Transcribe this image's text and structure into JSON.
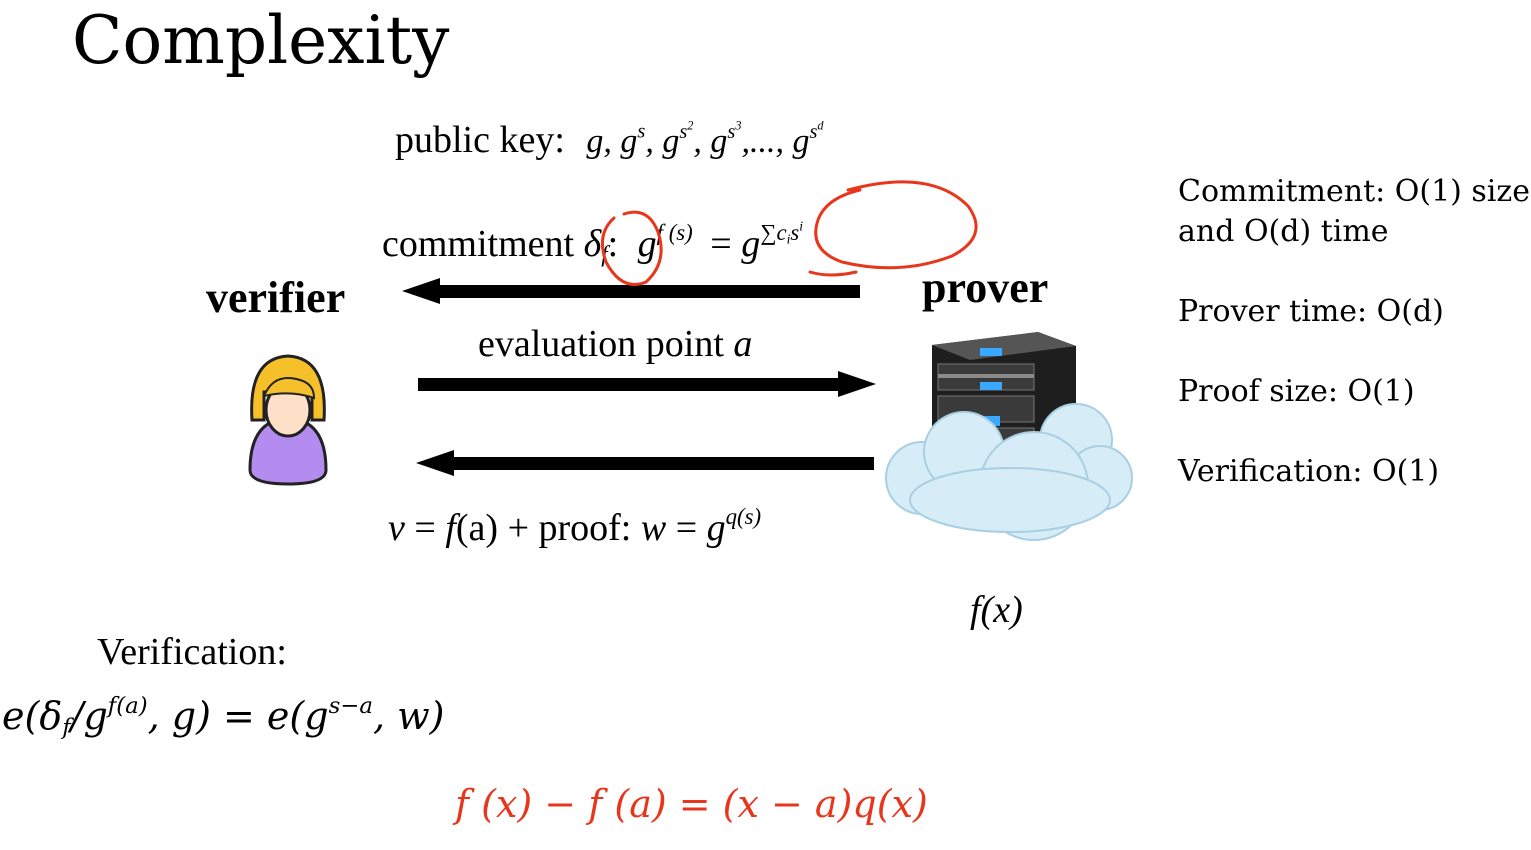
{
  "title": "Complexity",
  "public_key": {
    "label": "public key:",
    "expr": "g, gs, gs2, gs3, ..., gsd",
    "terms": [
      "g",
      ", g",
      ", g",
      ", g",
      ",..., g"
    ],
    "exponents": [
      "s",
      "s",
      "s",
      "s"
    ],
    "sub_exponents": [
      "",
      "2",
      "3",
      "d"
    ]
  },
  "commitment": {
    "label": "commitment",
    "symbol": "δ",
    "symbol_sub": "f",
    "colon": ":",
    "lhs_base": "g",
    "lhs_exp": "f (s)",
    "equals": "=",
    "rhs_base": "g",
    "rhs_exp": "∑c",
    "rhs_exp_sub": "i",
    "rhs_exp_tail": "s",
    "rhs_exp_tail_sup": "i"
  },
  "verifier_label": "verifier",
  "prover_label": "prover",
  "evaluation": {
    "label": "evaluation point",
    "var": "a"
  },
  "response": {
    "v": "v",
    "eq1": " = ",
    "f": "f",
    "a": "(a)",
    "proof": " + proof:   ",
    "w": "w",
    "eq2": " = ",
    "g": "g",
    "exp": "q(s)"
  },
  "prover_poly": "f(x)",
  "verification": {
    "label": "Verification:",
    "lhs": "e(δ",
    "lhs_sub": "f",
    "lhs_mid": "/g",
    "lhs_exp": "f(a)",
    "lhs_tail": ", g) = e(g",
    "rhs_exp": "s−a",
    "rhs_tail": ", w)"
  },
  "identity": "f (x) − f (a) = (x − a)q(x)",
  "side_notes": [
    "Commitment: O(1) size",
    "and O(d) time",
    "Prover time: O(d)",
    "Proof size: O(1)",
    "Verification: O(1)"
  ],
  "colors": {
    "annotation": "#e8361c",
    "arrow": "#000000",
    "verifier_hair": "#f6c02a",
    "verifier_body": "#b48cf0",
    "verifier_face": "#fde0c8",
    "server_body": "#2a2a2a",
    "server_led": "#3aa8ff",
    "cloud": "#d6ecf7"
  },
  "icons": [
    "verifier-person-icon",
    "server-cloud-icon"
  ]
}
